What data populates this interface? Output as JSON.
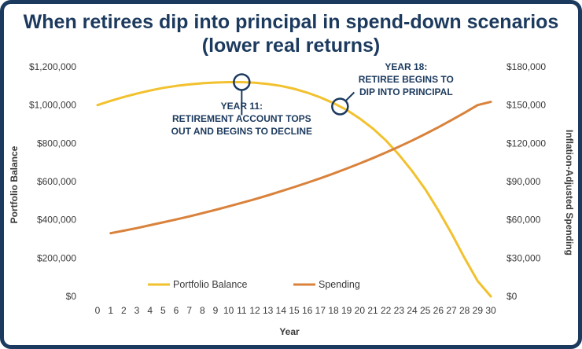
{
  "colors": {
    "frame": "#1c3a5e",
    "title": "#1c3a5e",
    "portfolio": "#f2c12e",
    "spending": "#d9823b",
    "annotation": "#1c3a5e"
  },
  "chart_data": {
    "type": "line",
    "title_lines": [
      "When retirees dip into principal in spend-down scenarios",
      "(lower real returns)"
    ],
    "xlabel": "Year",
    "ylabel_left": "Portfolio Balance",
    "ylabel_right": "Inflation-Adjusted Spending",
    "x": [
      0,
      1,
      2,
      3,
      4,
      5,
      6,
      7,
      8,
      9,
      10,
      11,
      12,
      13,
      14,
      15,
      16,
      17,
      18,
      19,
      20,
      21,
      22,
      23,
      24,
      25,
      26,
      27,
      28,
      29,
      30
    ],
    "x_ticks": [
      "0",
      "1",
      "2",
      "3",
      "4",
      "5",
      "6",
      "7",
      "8",
      "9",
      "10",
      "11",
      "12",
      "13",
      "14",
      "15",
      "16",
      "17",
      "18",
      "19",
      "20",
      "21",
      "22",
      "23",
      "24",
      "25",
      "26",
      "27",
      "28",
      "29",
      "30"
    ],
    "ylim_left": [
      0,
      1200000
    ],
    "ylim_right": [
      0,
      180000
    ],
    "y_ticks_left": [
      "$0",
      "$200,000",
      "$400,000",
      "$600,000",
      "$800,000",
      "$1,000,000",
      "$1,200,000"
    ],
    "y_ticks_right": [
      "$0",
      "$30,000",
      "$60,000",
      "$90,000",
      "$120,000",
      "$150,000",
      "$180,000"
    ],
    "grid": false,
    "legend_position": "bottom-center",
    "series": [
      {
        "name": "Portfolio Balance",
        "axis": "left",
        "x": [
          0,
          1,
          2,
          3,
          4,
          5,
          6,
          7,
          8,
          9,
          10,
          11,
          12,
          13,
          14,
          15,
          16,
          17,
          18,
          19,
          20,
          21,
          22,
          23,
          24,
          25,
          26,
          27,
          28,
          29,
          30
        ],
        "values": [
          1000000,
          1022000,
          1042000,
          1060000,
          1076000,
          1090000,
          1100000,
          1108000,
          1114000,
          1118000,
          1120000,
          1120000,
          1117000,
          1110000,
          1100000,
          1085000,
          1065000,
          1040000,
          1010000,
          975000,
          930000,
          878000,
          815000,
          740000,
          655000,
          560000,
          450000,
          330000,
          200000,
          80000,
          0
        ]
      },
      {
        "name": "Spending",
        "axis": "right",
        "x": [
          1,
          2,
          3,
          4,
          5,
          6,
          7,
          8,
          9,
          10,
          11,
          12,
          13,
          14,
          15,
          16,
          17,
          18,
          19,
          20,
          21,
          22,
          23,
          24,
          25,
          26,
          27,
          28,
          29,
          30
        ],
        "values": [
          49500,
          51500,
          53500,
          55800,
          58000,
          60300,
          62700,
          65200,
          67800,
          70500,
          73300,
          76200,
          79200,
          82400,
          85700,
          89100,
          92600,
          96300,
          100200,
          104200,
          108400,
          112800,
          117400,
          122200,
          127300,
          132600,
          138200,
          144000,
          150000,
          152500
        ]
      }
    ],
    "annotations": [
      {
        "x": 11,
        "series": "Portfolio Balance",
        "lines": [
          "YEAR 11:",
          "RETIREMENT ACCOUNT TOPS",
          "OUT AND BEGINS TO DECLINE"
        ]
      },
      {
        "x": 18.5,
        "series": "Portfolio Balance",
        "lines": [
          "YEAR 18:",
          "RETIREE BEGINS TO",
          "DIP INTO PRINCIPAL"
        ]
      }
    ]
  }
}
